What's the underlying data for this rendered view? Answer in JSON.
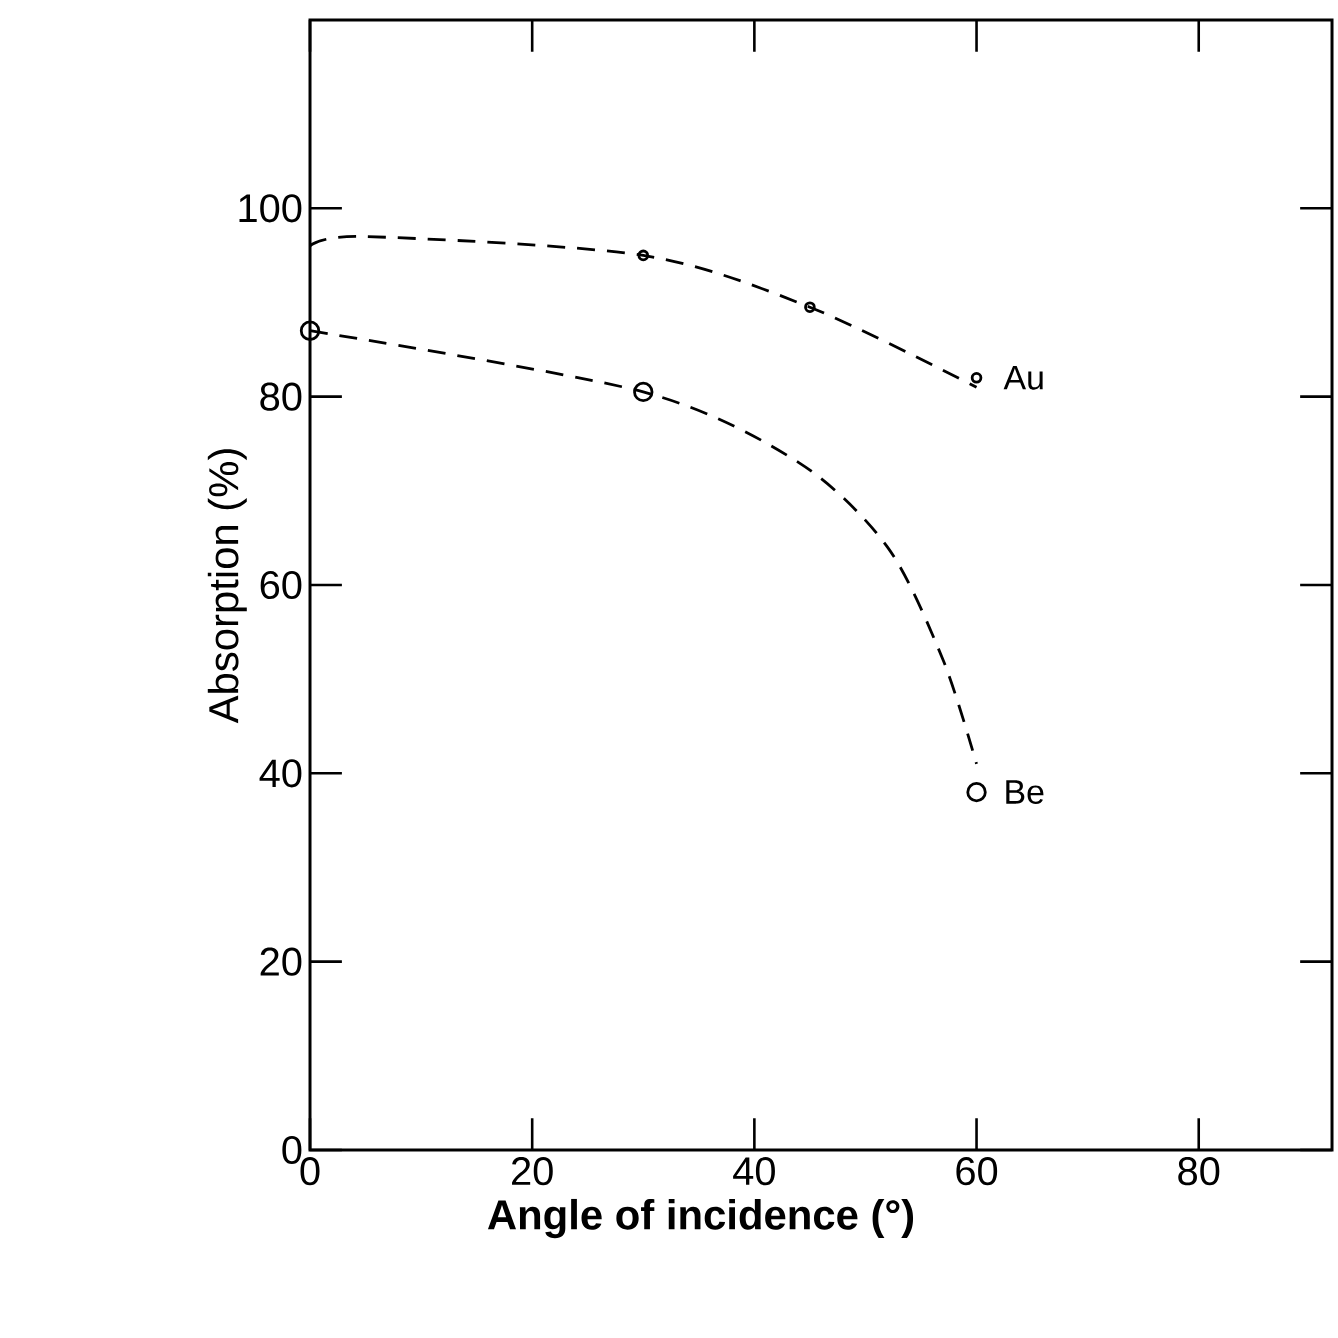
{
  "chart_data": {
    "type": "line",
    "xlabel": "**Angle of incidence (°)**",
    "ylabel": "Absorption (%)",
    "xlim": [
      0,
      92
    ],
    "ylim": [
      0,
      120
    ],
    "xticks": [
      0,
      20,
      40,
      60,
      80
    ],
    "yticks": [
      0,
      20,
      40,
      60,
      80,
      100
    ],
    "series": [
      {
        "line_style": "dashed",
        "marker": "none",
        "color": "#000000",
        "x": [
          0,
          5,
          30,
          45,
          60
        ],
        "values": [
          96,
          97,
          95,
          89.5,
          81
        ]
      },
      {
        "type": "scatter",
        "name": "Au",
        "marker": "circle",
        "color": "#000000",
        "x": [
          30,
          45,
          60
        ],
        "values": [
          95,
          89.5,
          82
        ]
      },
      {
        "line_style": "dashed",
        "marker": "none",
        "color": "#000000",
        "x": [
          0,
          30,
          44,
          52,
          57,
          60
        ],
        "values": [
          87,
          80.5,
          73,
          64,
          52,
          41
        ]
      },
      {
        "type": "scatter",
        "name": "Be",
        "marker": "circle",
        "color": "#000000",
        "x": [
          0,
          30,
          60
        ],
        "values": [
          87,
          80.5,
          38
        ]
      }
    ]
  }
}
